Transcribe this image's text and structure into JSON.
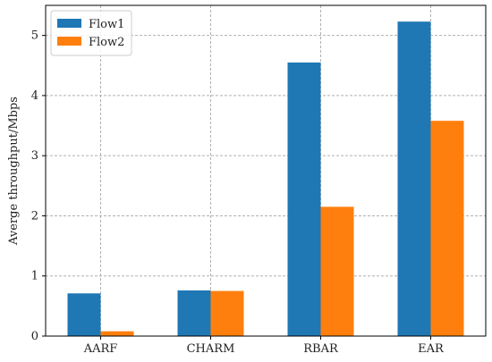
{
  "chart_data": {
    "type": "bar",
    "categories": [
      "AARF",
      "CHARM",
      "RBAR",
      "EAR"
    ],
    "series": [
      {
        "name": "Flow1",
        "values": [
          0.71,
          0.76,
          4.55,
          5.23
        ],
        "color": "#1f77b4"
      },
      {
        "name": "Flow2",
        "values": [
          0.08,
          0.75,
          2.15,
          3.58
        ],
        "color": "#ff7f0e"
      }
    ],
    "title": "",
    "xlabel": "",
    "ylabel": "Averge throughput/Mbps",
    "ylim": [
      0,
      5.5
    ],
    "yticks": [
      0,
      1,
      2,
      3,
      4,
      5
    ],
    "grid": true,
    "legend_position": "top-left"
  }
}
